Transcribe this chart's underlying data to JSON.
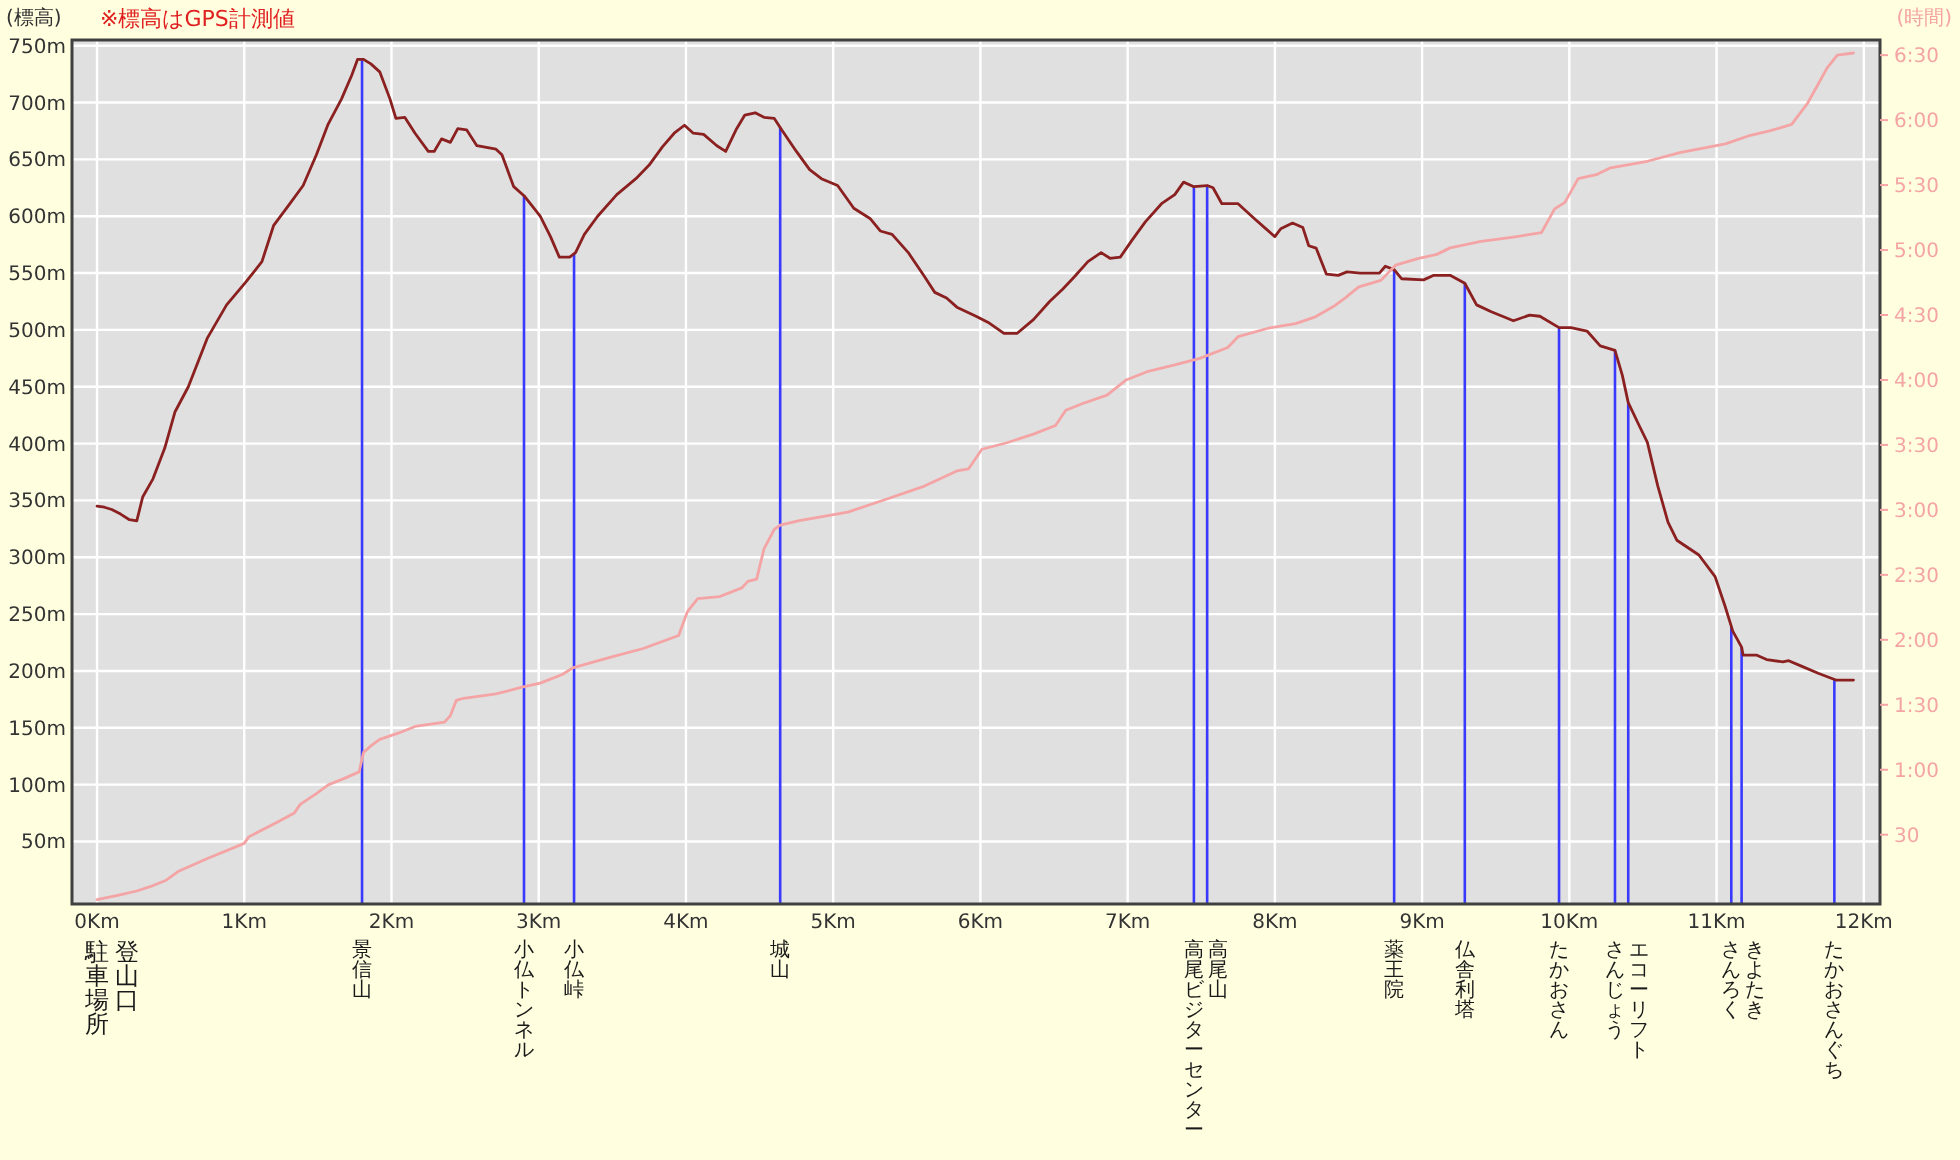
{
  "chart_data": {
    "type": "line",
    "ylabel": "(標高)",
    "y2label": "(時間)",
    "annotations": [
      "※標高はGPS計測値",
      "駐車場所",
      "登山口"
    ],
    "xlim": [
      -0.17,
      12.11
    ],
    "xticks": [
      {
        "value": 0,
        "label": "0Km"
      },
      {
        "value": 1,
        "label": "1Km"
      },
      {
        "value": 2,
        "label": "2Km"
      },
      {
        "value": 3,
        "label": "3Km"
      },
      {
        "value": 4,
        "label": "4Km"
      },
      {
        "value": 5,
        "label": "5Km"
      },
      {
        "value": 6,
        "label": "6Km"
      },
      {
        "value": 7,
        "label": "7Km"
      },
      {
        "value": 8,
        "label": "8Km"
      },
      {
        "value": 9,
        "label": "9Km"
      },
      {
        "value": 10,
        "label": "10Km"
      },
      {
        "value": 11,
        "label": "11Km"
      },
      {
        "value": 12,
        "label": "12Km"
      }
    ],
    "ylim": [
      -5,
      755
    ],
    "yticks": [
      {
        "value": 50,
        "label": "50m"
      },
      {
        "value": 100,
        "label": "100m"
      },
      {
        "value": 150,
        "label": "150m"
      },
      {
        "value": 200,
        "label": "200m"
      },
      {
        "value": 250,
        "label": "250m"
      },
      {
        "value": 300,
        "label": "300m"
      },
      {
        "value": 350,
        "label": "350m"
      },
      {
        "value": 400,
        "label": "400m"
      },
      {
        "value": 450,
        "label": "450m"
      },
      {
        "value": 500,
        "label": "500m"
      },
      {
        "value": 550,
        "label": "550m"
      },
      {
        "value": 600,
        "label": "600m"
      },
      {
        "value": 650,
        "label": "650m"
      },
      {
        "value": 700,
        "label": "700m"
      },
      {
        "value": 750,
        "label": "750m"
      }
    ],
    "y2lim": [
      -2,
      397
    ],
    "y2ticks": [
      30,
      {
        "value": 60,
        "label": "1:00"
      },
      {
        "value": 90,
        "label": "1:30"
      },
      {
        "value": 120,
        "label": "2:00"
      },
      {
        "value": 150,
        "label": "2:30"
      },
      {
        "value": 180,
        "label": "3:00"
      },
      {
        "value": 210,
        "label": "3:30"
      },
      {
        "value": 240,
        "label": "4:00"
      },
      {
        "value": 270,
        "label": "4:30"
      },
      {
        "value": 300,
        "label": "5:00"
      },
      {
        "value": 330,
        "label": "5:30"
      },
      {
        "value": 360,
        "label": "6:00"
      },
      {
        "value": 390,
        "label": "6:30"
      }
    ],
    "grid": true,
    "series": [
      {
        "color": "#8b2020",
        "x": [
          0,
          0.05,
          0.1,
          0.16,
          0.22,
          0.27,
          0.31,
          0.38,
          0.46,
          0.53,
          0.62,
          0.75,
          0.88,
          1.01,
          1.12,
          1.2,
          1.31,
          1.4,
          1.49,
          1.57,
          1.66,
          1.73,
          1.77,
          1.81,
          1.86,
          1.92,
          1.99,
          2.03,
          2.09,
          2.16,
          2.25,
          2.29,
          2.34,
          2.4,
          2.45,
          2.51,
          2.58,
          2.71,
          2.75,
          2.83,
          2.9,
          3.01,
          3.08,
          3.14,
          3.21,
          3.25,
          3.31,
          3.4,
          3.53,
          3.66,
          3.75,
          3.84,
          3.92,
          3.99,
          4.05,
          4.12,
          4.21,
          4.27,
          4.34,
          4.4,
          4.47,
          4.53,
          4.6,
          4.65,
          4.75,
          4.84,
          4.92,
          5.03,
          5.14,
          5.25,
          5.32,
          5.4,
          5.51,
          5.62,
          5.69,
          5.77,
          5.84,
          5.97,
          6.06,
          6.16,
          6.25,
          6.36,
          6.47,
          6.56,
          6.64,
          6.73,
          6.82,
          6.88,
          6.95,
          7.03,
          7.12,
          7.23,
          7.32,
          7.38,
          7.45,
          7.54,
          7.58,
          7.64,
          7.75,
          7.86,
          7.93,
          8.0,
          8.04,
          8.12,
          8.19,
          8.23,
          8.28,
          8.35,
          8.43,
          8.49,
          8.58,
          8.71,
          8.75,
          8.81,
          8.86,
          9.01,
          9.08,
          9.19,
          9.29,
          9.37,
          9.47,
          9.62,
          9.73,
          9.8,
          9.93,
          10.01,
          10.12,
          10.21,
          10.31,
          10.36,
          10.4,
          10.47,
          10.53,
          10.6,
          10.67,
          10.73,
          10.88,
          10.99,
          11.06,
          11.11,
          11.17,
          11.18,
          11.27,
          11.34,
          11.45,
          11.49,
          11.58,
          11.69,
          11.81,
          11.93
        ],
        "values": [
          345,
          344,
          342,
          338,
          333,
          332,
          353,
          369,
          396,
          428,
          450,
          493,
          522,
          542,
          560,
          592,
          611,
          627,
          654,
          681,
          703,
          724,
          738,
          738,
          734,
          727,
          703,
          686,
          687,
          673,
          657,
          657,
          668,
          665,
          677,
          676,
          662,
          659,
          654,
          626,
          618,
          600,
          582,
          564,
          564,
          568,
          584,
          600,
          619,
          633,
          645,
          661,
          673,
          680,
          673,
          672,
          662,
          657,
          676,
          689,
          691,
          687,
          686,
          676,
          657,
          641,
          633,
          627,
          607,
          598,
          587,
          584,
          568,
          547,
          533,
          528,
          520,
          512,
          506,
          497,
          497,
          509,
          525,
          536,
          547,
          560,
          568,
          563,
          564,
          579,
          595,
          611,
          619,
          630,
          626,
          627,
          625,
          611,
          611,
          598,
          590,
          582,
          589,
          594,
          590,
          574,
          572,
          549,
          548,
          551,
          550,
          550,
          556,
          553,
          545,
          544,
          548,
          548,
          541,
          522,
          516,
          508,
          513,
          512,
          502,
          502,
          499,
          486,
          482,
          460,
          436,
          417,
          401,
          363,
          331,
          315,
          302,
          283,
          256,
          235,
          221,
          214,
          214,
          210,
          208,
          209,
          204,
          198,
          192,
          192
        ]
      },
      {
        "color": "#f4a4a4",
        "axis": "y2",
        "x": [
          0,
          0.14,
          0.27,
          0.36,
          0.47,
          0.55,
          0.75,
          1.0,
          1.03,
          1.23,
          1.34,
          1.38,
          1.49,
          1.57,
          1.68,
          1.78,
          1.81,
          1.86,
          1.92,
          2.05,
          2.16,
          2.36,
          2.4,
          2.44,
          2.49,
          2.71,
          2.88,
          3.01,
          3.16,
          3.23,
          3.49,
          3.71,
          3.95,
          4.01,
          4.08,
          4.23,
          4.38,
          4.42,
          4.48,
          4.53,
          4.6,
          4.64,
          4.77,
          5.1,
          5.32,
          5.62,
          5.84,
          5.92,
          6.01,
          6.18,
          6.36,
          6.51,
          6.58,
          6.69,
          6.86,
          6.99,
          7.14,
          7.32,
          7.49,
          7.68,
          7.75,
          7.96,
          8.14,
          8.27,
          8.4,
          8.48,
          8.57,
          8.72,
          8.82,
          8.97,
          9.1,
          9.19,
          9.4,
          9.62,
          9.81,
          9.9,
          9.97,
          10.06,
          10.19,
          10.28,
          10.53,
          10.75,
          11.06,
          11.23,
          11.36,
          11.51,
          11.62,
          11.75,
          11.82,
          11.93
        ],
        "values": [
          0,
          2,
          4,
          6,
          9,
          13,
          19,
          26,
          29,
          36,
          40,
          44,
          49,
          53,
          56,
          59,
          68,
          71,
          74,
          77,
          80,
          82,
          85,
          92,
          93,
          95,
          98,
          100,
          104,
          107,
          112,
          116,
          122,
          133,
          139,
          140,
          144,
          147,
          148,
          162,
          171,
          173,
          175,
          179,
          184,
          191,
          198,
          199,
          208,
          211,
          215,
          219,
          226,
          229,
          233,
          240,
          244,
          247,
          250,
          255,
          260,
          264,
          266,
          269,
          274,
          278,
          283,
          286,
          293,
          296,
          298,
          301,
          304,
          306,
          308,
          319,
          322,
          333,
          335,
          338,
          341,
          345,
          349,
          353,
          355,
          358,
          368,
          384,
          390,
          391
        ]
      }
    ],
    "ref_lines": [
      {
        "axis": "x",
        "value": 1.8,
        "label": "景信山",
        "color": "#3a3aff"
      },
      {
        "axis": "x",
        "value": 2.9,
        "label": "小仏トンネル",
        "color": "#3a3aff"
      },
      {
        "axis": "x",
        "value": 3.24,
        "label": "小仏峠",
        "color": "#3a3aff"
      },
      {
        "axis": "x",
        "value": 4.64,
        "label": "城山",
        "color": "#3a3aff"
      },
      {
        "axis": "x",
        "value": 7.45,
        "label": "高尾ビジターセンター",
        "color": "#3a3aff"
      },
      {
        "axis": "x",
        "value": 7.54,
        "label": "高尾山",
        "color": "#3a3aff"
      },
      {
        "axis": "x",
        "value": 8.81,
        "label": "薬王院",
        "color": "#3a3aff"
      },
      {
        "axis": "x",
        "value": 9.29,
        "label": "仏舎利塔",
        "color": "#3a3aff"
      },
      {
        "axis": "x",
        "value": 9.93,
        "label": "たかおさん",
        "color": "#3a3aff"
      },
      {
        "axis": "x",
        "value": 10.31,
        "label": "さんじょう",
        "color": "#3a3aff"
      },
      {
        "axis": "x",
        "value": 10.4,
        "label": "エコーリフト",
        "color": "#3a3aff"
      },
      {
        "axis": "x",
        "value": 11.1,
        "label": "さんろく",
        "color": "#3a3aff"
      },
      {
        "axis": "x",
        "value": 11.17,
        "label": "きよたき",
        "color": "#3a3aff"
      },
      {
        "axis": "x",
        "value": 11.8,
        "label": "たかおさんぐち",
        "color": "#3a3aff"
      }
    ]
  }
}
